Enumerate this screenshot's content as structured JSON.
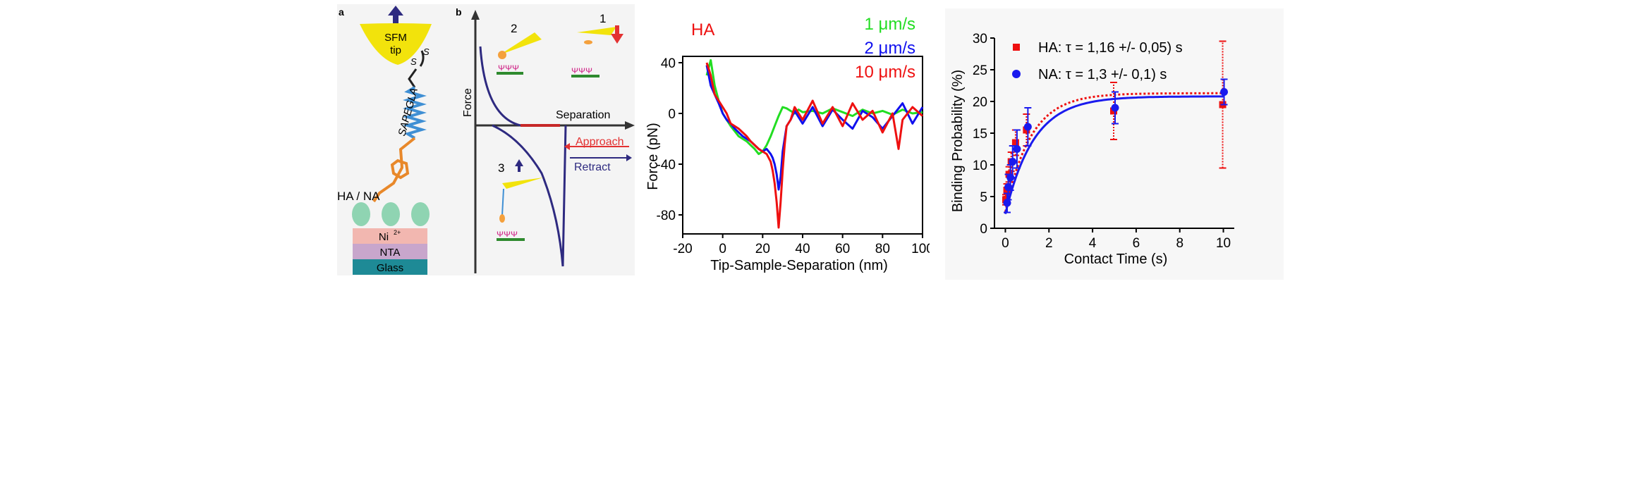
{
  "schematic": {
    "label_a": "a",
    "label_b": "b",
    "tip_line1": "SFM",
    "tip_line2": "tip",
    "sulfur1": "S",
    "sulfur2": "S",
    "linker": "SAPEGLA",
    "receptor": "HA / NA",
    "nickel": "Ni",
    "nickel_charge": "2+",
    "nta": "NTA",
    "glass": "Glass",
    "force_axis": "Force",
    "separation_axis": "Separation",
    "approach": "Approach",
    "retract": "Retract",
    "step1": "1",
    "step2": "2",
    "step3": "3",
    "colors": {
      "tip": "#f2e30c",
      "approach": "#e33232",
      "retract": "#2e2a80",
      "nickel": "#f2b7b0",
      "nta": "#c8a6cc",
      "glass": "#1e8a96",
      "receptor": "#8fd4b2"
    }
  },
  "chart_data": [
    {
      "type": "line",
      "title": "HA",
      "xlabel": "Tip-Sample-Separation (nm)",
      "ylabel": "Force (pN)",
      "xlim": [
        -20,
        100
      ],
      "ylim": [
        -95,
        45
      ],
      "xticks": [
        "-20",
        "0",
        "20",
        "40",
        "60",
        "80",
        "100"
      ],
      "yticks": [
        "40",
        "0",
        "-40",
        "-80"
      ],
      "legend": [
        "1 μm/s",
        "2 μm/s",
        "10 μm/s"
      ],
      "legend_position": "top-right",
      "series": [
        {
          "name": "1 μm/s",
          "color": "#22dd22",
          "x": [
            -8,
            -6,
            -4,
            -2,
            0,
            2,
            4,
            6,
            8,
            10,
            12,
            14,
            16,
            18,
            20,
            22,
            24,
            26,
            28,
            30,
            32,
            34,
            36,
            38,
            40,
            45,
            50,
            55,
            60,
            65,
            70,
            75,
            80,
            85,
            90,
            95,
            100
          ],
          "y": [
            30,
            42,
            22,
            10,
            0,
            -5,
            -10,
            -14,
            -18,
            -20,
            -22,
            -25,
            -28,
            -32,
            -30,
            -25,
            -18,
            -10,
            -2,
            5,
            4,
            2,
            0,
            3,
            1,
            2,
            0,
            4,
            1,
            -2,
            3,
            0,
            2,
            -1,
            3,
            0,
            1
          ]
        },
        {
          "name": "2 μm/s",
          "color": "#1010ee",
          "x": [
            -8,
            -6,
            -4,
            -2,
            0,
            2,
            4,
            6,
            8,
            10,
            12,
            14,
            16,
            18,
            20,
            22,
            24,
            25,
            26,
            27,
            28,
            29,
            30,
            32,
            34,
            36,
            40,
            45,
            50,
            55,
            60,
            65,
            70,
            75,
            80,
            85,
            90,
            95,
            100
          ],
          "y": [
            38,
            22,
            15,
            8,
            0,
            -5,
            -8,
            -12,
            -15,
            -18,
            -20,
            -22,
            -25,
            -28,
            -30,
            -28,
            -32,
            -35,
            -40,
            -48,
            -60,
            -50,
            -30,
            -10,
            -5,
            2,
            -8,
            5,
            -10,
            3,
            -5,
            -12,
            2,
            -3,
            -12,
            -2,
            8,
            -8,
            5
          ]
        },
        {
          "name": "10 μm/s",
          "color": "#ee1010",
          "x": [
            -8,
            -6,
            -4,
            -2,
            0,
            2,
            4,
            6,
            8,
            10,
            12,
            14,
            16,
            18,
            20,
            22,
            24,
            25,
            26,
            27,
            28,
            29,
            30,
            31,
            32,
            34,
            36,
            40,
            45,
            50,
            55,
            60,
            65,
            70,
            75,
            80,
            85,
            88,
            90,
            95,
            100
          ],
          "y": [
            40,
            30,
            15,
            10,
            5,
            0,
            -8,
            -10,
            -12,
            -15,
            -18,
            -22,
            -25,
            -28,
            -30,
            -32,
            -38,
            -45,
            -55,
            -70,
            -90,
            -70,
            -45,
            -25,
            -10,
            -5,
            5,
            -5,
            10,
            -8,
            5,
            -10,
            8,
            -5,
            2,
            -15,
            0,
            -28,
            -5,
            5,
            -2
          ]
        }
      ]
    },
    {
      "type": "scatter",
      "xlabel": "Contact Time (s)",
      "ylabel": "Binding Probability (%)",
      "xlim": [
        -0.5,
        10.5
      ],
      "ylim": [
        0,
        30
      ],
      "xticks": [
        "0",
        "2",
        "4",
        "6",
        "8",
        "10"
      ],
      "yticks": [
        "0",
        "5",
        "10",
        "15",
        "20",
        "25",
        "30"
      ],
      "legend_position": "top-left",
      "series": [
        {
          "name": "HA: τ = 1,16 +/- 0,05) s",
          "color": "#ee1010",
          "marker": "square",
          "x": [
            0.05,
            0.1,
            0.2,
            0.3,
            0.5,
            1,
            5,
            10
          ],
          "y": [
            4.5,
            6,
            8.5,
            10.5,
            13.5,
            15.5,
            18.5,
            19.5
          ],
          "err": [
            0.8,
            1,
            1.2,
            1.5,
            2,
            2.5,
            4.5,
            10
          ],
          "fit_plateau": 21.3,
          "fit_tau": 1.16
        },
        {
          "name": "NA: τ = 1,3 +/- 0,1) s",
          "color": "#1a1aee",
          "marker": "circle",
          "x": [
            0.05,
            0.1,
            0.2,
            0.3,
            0.5,
            1,
            5,
            10
          ],
          "y": [
            4,
            6.5,
            8,
            10.5,
            12.5,
            16,
            19,
            21.5
          ],
          "err": [
            1.5,
            2,
            2,
            2.5,
            3,
            3,
            2.5,
            2
          ],
          "fit_plateau": 20.8,
          "fit_tau": 1.3
        }
      ]
    }
  ]
}
